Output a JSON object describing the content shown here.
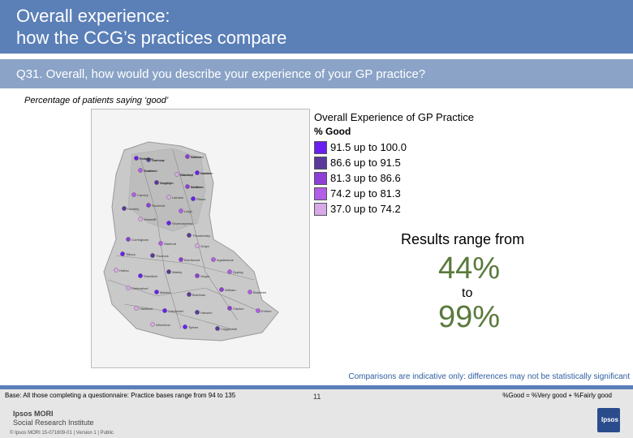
{
  "header": {
    "title_line1": "Overall experience:",
    "title_line2": "how the CCG’s practices compare"
  },
  "question": "Q31. Overall, how would you describe your experience of your GP practice?",
  "subtitle": "Percentage of patients saying ‘good’",
  "legend": {
    "title": "Overall Experience of GP Practice",
    "subtitle": "% Good",
    "items": [
      {
        "label": "91.5 up to 100.0",
        "color": "#6a1ff0"
      },
      {
        "label": "86.6 up to 91.5",
        "color": "#5a3a9a"
      },
      {
        "label": "81.3 up to 86.6",
        "color": "#8e3fd6"
      },
      {
        "label": "74.2 up to 81.3",
        "color": "#b15ee8"
      },
      {
        "label": "37.0 up to 74.2",
        "color": "#d8a9e6"
      }
    ]
  },
  "range": {
    "intro": "Results range from",
    "min": "44%",
    "to": "to",
    "max": "99%"
  },
  "note": "Comparisons are indicative only: differences may not be statistically significant",
  "footer": {
    "base": "Base: All those completing a questionnaire: Practice bases range from 94 to 135",
    "good_definition": "%Good = %Very good + %Fairly good",
    "logo_line1": "Ipsos MORI",
    "logo_line2": "Social Research Institute",
    "page": "11",
    "copyright": "© Ipsos MORI     15-071809-01 | Version 1 | Public",
    "logo_mark": "Ipsos"
  },
  "map": {
    "labels": [
      "Potter",
      "Danbury",
      "Wickford",
      "Southend",
      "Billericay",
      "Basildon",
      "Rayleigh",
      "Benfleet",
      "Canvey",
      "Laindon",
      "Pitsea",
      "Hockley",
      "Rochford",
      "Leigh",
      "Westcliff",
      "Shoeburyness",
      "Thundersley",
      "Corringham",
      "Stanford",
      "Grays",
      "Tilbury",
      "Thurrock",
      "Brentwood",
      "Ingatestone",
      "Hutton",
      "Shenfield",
      "Warley",
      "Ongar",
      "Epping",
      "Chelmsford",
      "Maldon",
      "Burnham",
      "Witham",
      "Braintree",
      "Halstead",
      "Colchester",
      "Harwich",
      "Clacton",
      "Frinton",
      "Wivenhoe",
      "Tiptree",
      "Coggeshall",
      "Kelvedon",
      "Dunmow",
      "Saffron",
      "Thaxted",
      "Stansted",
      "Harlow",
      "Loughton",
      "Waltham"
    ]
  }
}
